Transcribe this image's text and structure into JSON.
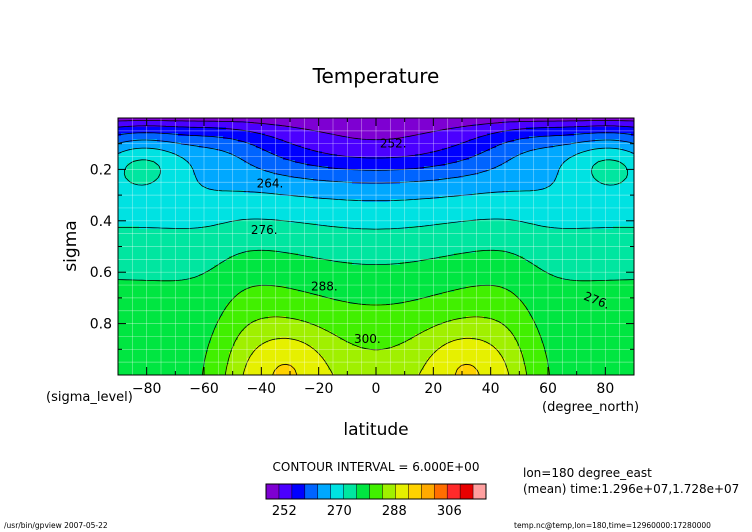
{
  "chart_data": {
    "type": "contour",
    "title": "Temperature",
    "xlabel": "latitude",
    "ylabel": "sigma",
    "x_unit_label": "(degree_north)",
    "y_unit_label": "(sigma_level)",
    "xlim": [
      -90,
      90
    ],
    "ylim": [
      0.0,
      1.0
    ],
    "y_inverted": true,
    "xticks": [
      -80,
      -60,
      -40,
      -20,
      0,
      20,
      40,
      60,
      80
    ],
    "xtick_labels": [
      "−80",
      "−60",
      "−40",
      "−20",
      "0",
      "20",
      "40",
      "60",
      "80"
    ],
    "yticks": [
      0.2,
      0.4,
      0.6,
      0.8
    ],
    "ytick_labels": [
      "0.2",
      "0.4",
      "0.6",
      "0.8"
    ],
    "grid": true,
    "contour_interval_text": "CONTOUR INTERVAL = 6.000E+00",
    "contour_interval": 6,
    "contour_labels": [
      {
        "text": "252.",
        "lat": 6,
        "sigma": 0.1
      },
      {
        "text": "264.",
        "lat": -37,
        "sigma": 0.255
      },
      {
        "text": "276.",
        "lat": -39,
        "sigma": 0.435
      },
      {
        "text": "288.",
        "lat": -18,
        "sigma": 0.655
      },
      {
        "text": "300.",
        "lat": -3,
        "sigma": 0.86
      },
      {
        "text": "276.",
        "lat": 77,
        "sigma": 0.71
      }
    ],
    "colorbar": {
      "min": 246,
      "max": 318,
      "step": 6,
      "tick_labels": [
        "252",
        "270",
        "288",
        "306"
      ],
      "tick_values": [
        252,
        270,
        288,
        306
      ],
      "colors": [
        "#7e00d2",
        "#4b00ff",
        "#0000ff",
        "#0064ff",
        "#00a8ff",
        "#00e2e2",
        "#00e6a0",
        "#00e641",
        "#41f000",
        "#a0f000",
        "#e6f000",
        "#ffd200",
        "#ffaa00",
        "#ff6e00",
        "#ff2a2a",
        "#e80000",
        "#ffa0a0"
      ]
    },
    "info_lines": [
      "lon=180 degree_east",
      "(mean) time:1.296e+07,1.728e+07"
    ],
    "footer_left": "/usr/bin/gpview 2007-05-22",
    "footer_right": "temp.nc@temp,lon=180,time=12960000:17280000"
  }
}
